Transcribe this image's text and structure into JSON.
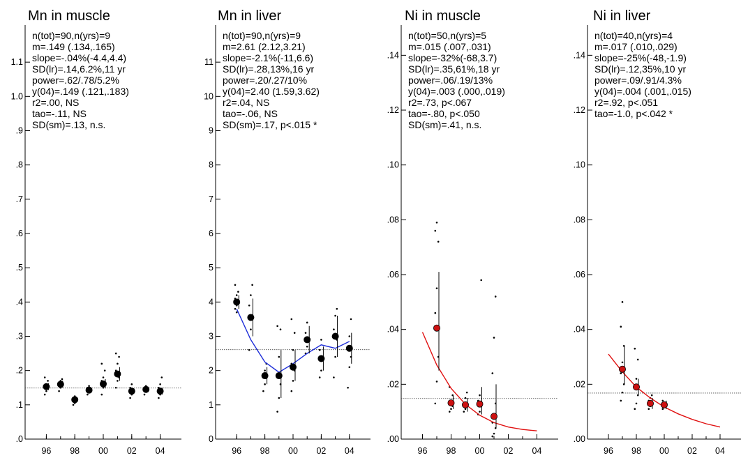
{
  "chart_data": [
    {
      "type": "scatter",
      "title": "Mn in muscle",
      "ylim": [
        0,
        1.2
      ],
      "yticks": [
        0,
        0.1,
        0.2,
        0.3,
        0.4,
        0.5,
        0.6,
        0.7,
        0.8,
        0.9,
        1.0,
        1.1
      ],
      "yticklabels": [
        ".0",
        ".1",
        ".2",
        ".3",
        ".4",
        ".5",
        ".6",
        ".7",
        ".8",
        ".9",
        "1.0",
        "1.1"
      ],
      "xlim": [
        1995,
        2005
      ],
      "xticks": [
        1996,
        1998,
        2000,
        2002,
        2004
      ],
      "xticklabels": [
        "96",
        "98",
        "00",
        "02",
        "04"
      ],
      "stats": [
        "n(tot)=90,n(yrs)=9",
        "m=.149 (.134,.165)",
        "slope=-.04%(-4.4,4.4)",
        "SD(lr)=.14,6.2%,11 yr",
        "power=.62/.78/5.2%",
        "y(04)=.149 (.121,.183)",
        "r2=.00, NS",
        "tao=-.11, NS",
        "SD(sm)=.13, n.s."
      ],
      "mean_line": 0.149,
      "series": [
        {
          "x": [
            1996,
            1997,
            1998,
            1999,
            2000,
            2001,
            2002,
            2003,
            2004
          ],
          "y": [
            0.153,
            0.16,
            0.115,
            0.143,
            0.161,
            0.19,
            0.14,
            0.145,
            0.14
          ],
          "ci_low": [
            0.143,
            0.15,
            0.108,
            0.135,
            0.148,
            0.17,
            0.132,
            0.137,
            0.13
          ],
          "ci_high": [
            0.163,
            0.17,
            0.122,
            0.151,
            0.175,
            0.21,
            0.148,
            0.153,
            0.15
          ]
        }
      ],
      "raw_points": [
        [
          1996,
          [
            0.13,
            0.14,
            0.15,
            0.155,
            0.16,
            0.17,
            0.18
          ]
        ],
        [
          1997,
          [
            0.14,
            0.15,
            0.16,
            0.165,
            0.17,
            0.175
          ]
        ],
        [
          1998,
          [
            0.1,
            0.105,
            0.11,
            0.12,
            0.125
          ]
        ],
        [
          1999,
          [
            0.13,
            0.14,
            0.145,
            0.15,
            0.155
          ]
        ],
        [
          2000,
          [
            0.13,
            0.15,
            0.16,
            0.17,
            0.18,
            0.2,
            0.22
          ]
        ],
        [
          2001,
          [
            0.15,
            0.17,
            0.18,
            0.2,
            0.22,
            0.24,
            0.25
          ]
        ],
        [
          2002,
          [
            0.12,
            0.13,
            0.14,
            0.15,
            0.16
          ]
        ],
        [
          2003,
          [
            0.13,
            0.14,
            0.145,
            0.15,
            0.155
          ]
        ],
        [
          2004,
          [
            0.12,
            0.13,
            0.14,
            0.15,
            0.16,
            0.18
          ]
        ]
      ],
      "fit_color": ""
    },
    {
      "type": "scatter",
      "title": "Mn in liver",
      "ylim": [
        0,
        12
      ],
      "yticks": [
        0,
        1,
        2,
        3,
        4,
        5,
        6,
        7,
        8,
        9,
        10,
        11
      ],
      "yticklabels": [
        "0",
        "1",
        "2",
        "3",
        "4",
        "5",
        "6",
        "7",
        "8",
        "9",
        "10",
        "11"
      ],
      "xlim": [
        1995,
        2005
      ],
      "xticks": [
        1996,
        1998,
        2000,
        2002,
        2004
      ],
      "xticklabels": [
        "96",
        "98",
        "00",
        "02",
        "04"
      ],
      "stats": [
        "n(tot)=90,n(yrs)=9",
        "m=2.61 (2.12,3.21)",
        "slope=-2.1%(-11,6.6)",
        "SD(lr)=.28,13%,16 yr",
        "power=.20/.27/10%",
        "y(04)=2.40 (1.59,3.62)",
        "r2=.04, NS",
        "tao=-.06, NS",
        "SD(sm)=.17, p<.015 *"
      ],
      "mean_line": 2.61,
      "series": [
        {
          "x": [
            1996,
            1997,
            1998,
            1999,
            2000,
            2001,
            2002,
            2003,
            2004
          ],
          "y": [
            4.0,
            3.55,
            1.85,
            1.85,
            2.1,
            2.9,
            2.35,
            3.0,
            2.65
          ],
          "ci_low": [
            3.8,
            3.0,
            1.6,
            1.2,
            1.7,
            2.5,
            2.0,
            2.4,
            2.2
          ],
          "ci_high": [
            4.2,
            4.1,
            2.1,
            2.6,
            2.6,
            3.3,
            2.7,
            3.6,
            3.1
          ]
        }
      ],
      "raw_points": [
        [
          1996,
          [
            3.8,
            3.9,
            4.0,
            4.1,
            4.2,
            4.3,
            4.5,
            3.7
          ]
        ],
        [
          1997,
          [
            2.6,
            3.2,
            3.6,
            3.9,
            4.2,
            4.5
          ]
        ],
        [
          1998,
          [
            1.4,
            1.6,
            1.8,
            1.9,
            2.0,
            2.2
          ]
        ],
        [
          1999,
          [
            0.8,
            1.2,
            1.6,
            1.9,
            2.4,
            3.2,
            3.3
          ]
        ],
        [
          2000,
          [
            1.4,
            1.7,
            2.0,
            2.2,
            2.6,
            3.1,
            3.5
          ]
        ],
        [
          2001,
          [
            2.5,
            2.7,
            2.9,
            3.1,
            3.4
          ]
        ],
        [
          2002,
          [
            1.8,
            2.0,
            2.3,
            2.6,
            2.9
          ]
        ],
        [
          2003,
          [
            1.8,
            2.4,
            2.9,
            3.2,
            3.6,
            3.8
          ]
        ],
        [
          2004,
          [
            1.5,
            2.1,
            2.4,
            2.7,
            3.0,
            3.5
          ]
        ]
      ],
      "fit": {
        "x": [
          1996,
          1997,
          1998,
          1999,
          2000,
          2001,
          2002,
          2003,
          2004
        ],
        "y": [
          3.8,
          2.9,
          2.25,
          1.95,
          2.2,
          2.5,
          2.75,
          2.65,
          2.85
        ]
      },
      "fit_color": "#1f2fd8"
    },
    {
      "type": "scatter",
      "title": "Ni in muscle",
      "ylim": [
        0,
        0.15
      ],
      "yticks": [
        0,
        0.02,
        0.04,
        0.06,
        0.08,
        0.1,
        0.12,
        0.14
      ],
      "yticklabels": [
        ".00",
        ".02",
        ".04",
        ".06",
        ".08",
        ".10",
        ".12",
        ".14"
      ],
      "xlim": [
        1995,
        2005
      ],
      "xticks": [
        1996,
        1998,
        2000,
        2002,
        2004
      ],
      "xticklabels": [
        "96",
        "98",
        "00",
        "02",
        "04"
      ],
      "stats": [
        "n(tot)=50,n(yrs)=5",
        "m=.015 (.007,.031)",
        "slope=-32%(-68,3.7)",
        "SD(lr)=.35,61%,18 yr",
        "power=.06/.19/13%",
        "y(04)=.003 (.000,.019)",
        "r2=.73, p<.067",
        "tao=-.80, p<.050",
        "SD(sm)=.41, n.s."
      ],
      "mean_line": 0.0148,
      "series": [
        {
          "x": [
            1997,
            1998,
            1999,
            2000,
            2001
          ],
          "y": [
            0.0405,
            0.0132,
            0.0125,
            0.0128,
            0.0083
          ],
          "ci_low": [
            0.025,
            0.011,
            0.01,
            0.009,
            0.004
          ],
          "ci_high": [
            0.061,
            0.016,
            0.015,
            0.019,
            0.02
          ]
        }
      ],
      "raw_points": [
        [
          1997,
          [
            0.013,
            0.021,
            0.03,
            0.046,
            0.055,
            0.072,
            0.076,
            0.079
          ]
        ],
        [
          1998,
          [
            0.01,
            0.011,
            0.012,
            0.013,
            0.014,
            0.016,
            0.019
          ]
        ],
        [
          1999,
          [
            0.01,
            0.011,
            0.012,
            0.013,
            0.015,
            0.017
          ]
        ],
        [
          2000,
          [
            0.009,
            0.01,
            0.012,
            0.014,
            0.016,
            0.058
          ]
        ],
        [
          2001,
          [
            0.001,
            0.002,
            0.004,
            0.006,
            0.009,
            0.013,
            0.024,
            0.037,
            0.052
          ]
        ]
      ],
      "fit": {
        "x": [
          1996,
          1997,
          1998,
          1999,
          2000,
          2001,
          2002,
          2003,
          2004
        ],
        "y": [
          0.039,
          0.027,
          0.0185,
          0.0127,
          0.0087,
          0.006,
          0.0044,
          0.0035,
          0.003
        ]
      },
      "fit_color": "#e01010"
    },
    {
      "type": "scatter",
      "title": "Ni in liver",
      "ylim": [
        0,
        0.15
      ],
      "yticks": [
        0,
        0.02,
        0.04,
        0.06,
        0.08,
        0.1,
        0.12,
        0.14
      ],
      "yticklabels": [
        ".00",
        ".02",
        ".04",
        ".06",
        ".08",
        ".10",
        ".12",
        ".14"
      ],
      "xlim": [
        1995,
        2005
      ],
      "xticks": [
        1996,
        1998,
        2000,
        2002,
        2004
      ],
      "xticklabels": [
        "96",
        "98",
        "00",
        "02",
        "04"
      ],
      "stats": [
        "n(tot)=40,n(yrs)=4",
        "m=.017 (.010,.029)",
        "slope=-25%(-48,-1.9)",
        "SD(lr)=.12,35%,10 yr",
        "power=.09/.91/4.3%",
        "y(04)=.004 (.001,.015)",
        "r2=.92, p<.051",
        "tao=-1.0, p<.042 *"
      ],
      "mean_line": 0.0168,
      "series": [
        {
          "x": [
            1997,
            1998,
            1999,
            2000
          ],
          "y": [
            0.0255,
            0.019,
            0.013,
            0.0125
          ],
          "ci_low": [
            0.02,
            0.016,
            0.011,
            0.011
          ],
          "ci_high": [
            0.034,
            0.022,
            0.015,
            0.014
          ]
        }
      ],
      "raw_points": [
        [
          1997,
          [
            0.014,
            0.017,
            0.02,
            0.024,
            0.028,
            0.034,
            0.041,
            0.05
          ]
        ],
        [
          1998,
          [
            0.011,
            0.013,
            0.016,
            0.019,
            0.022,
            0.029,
            0.033
          ]
        ],
        [
          1999,
          [
            0.011,
            0.012,
            0.013,
            0.014,
            0.015,
            0.016
          ]
        ],
        [
          2000,
          [
            0.011,
            0.012,
            0.013,
            0.014
          ]
        ]
      ],
      "fit": {
        "x": [
          1996,
          1997,
          1998,
          1999,
          2000,
          2001,
          2002,
          2003,
          2004
        ],
        "y": [
          0.031,
          0.0245,
          0.019,
          0.015,
          0.0117,
          0.0092,
          0.0072,
          0.0056,
          0.0044
        ]
      },
      "fit_color": "#e01010"
    }
  ]
}
